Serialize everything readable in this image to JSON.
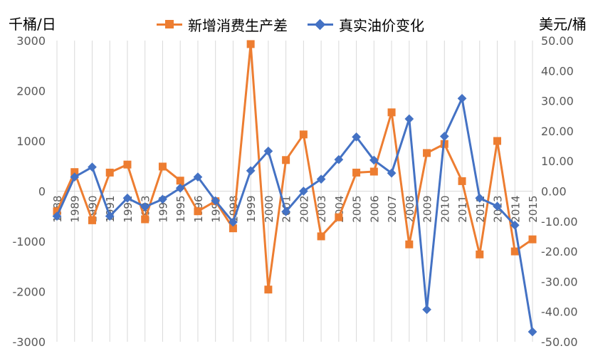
{
  "chart_data": {
    "type": "line",
    "y_left_unit": "千桶/日",
    "y_right_unit": "美元/桶",
    "x": [
      "1988",
      "1989",
      "1990",
      "1991",
      "1992",
      "1993",
      "1994",
      "1995",
      "1996",
      "1997",
      "1998",
      "1999",
      "2000",
      "2001",
      "2002",
      "2003",
      "2004",
      "2005",
      "2006",
      "2007",
      "2008",
      "2009",
      "2010",
      "2011",
      "2012",
      "2013",
      "2014",
      "2015"
    ],
    "y_left_ticks": [
      "3000",
      "2000",
      "1000",
      "0",
      "-1000",
      "-2000",
      "-3000"
    ],
    "y_right_ticks": [
      "50.00",
      "40.00",
      "30.00",
      "20.00",
      "10.00",
      "0.00",
      "-10.00",
      "-20.00",
      "-30.00",
      "-40.00",
      "-50.00"
    ],
    "ylim_left": [
      -3000,
      3000
    ],
    "ylim_right": [
      -50,
      50
    ],
    "grid": "vertical",
    "legend_position": "top",
    "series": [
      {
        "name": "新增消费生产差",
        "axis": "left",
        "color": "#ED7D31",
        "marker": "square",
        "values": [
          -400,
          380,
          -580,
          370,
          530,
          -560,
          490,
          210,
          -400,
          -200,
          -740,
          2930,
          -1960,
          620,
          1130,
          -900,
          -520,
          370,
          390,
          1570,
          -1060,
          760,
          940,
          200,
          -1260,
          1000,
          -1200,
          -960
        ]
      },
      {
        "name": "真实油价变化",
        "axis": "right",
        "color": "#4472C4",
        "marker": "diamond",
        "values": [
          -8.3,
          4.7,
          8.0,
          -8.3,
          -2.3,
          -5.2,
          -2.7,
          1.0,
          4.7,
          -3.2,
          -10.3,
          6.8,
          13.3,
          -6.8,
          0.0,
          4.0,
          10.5,
          18.0,
          10.3,
          6.0,
          24.0,
          -39.3,
          18.2,
          30.8,
          -2.3,
          -5.0,
          -11.3,
          -46.7
        ]
      }
    ]
  }
}
